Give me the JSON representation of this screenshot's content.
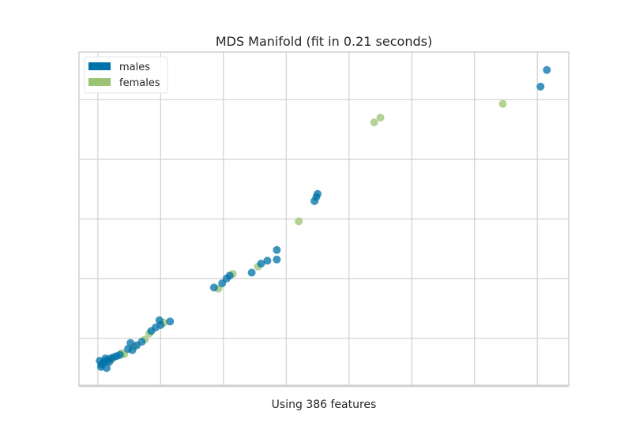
{
  "chart_data": {
    "type": "scatter",
    "title": "MDS Manifold (fit in 0.21 seconds)",
    "xlabel": "Using 386 features",
    "ylabel": "",
    "xlim": [
      -0.3,
      7.5
    ],
    "ylim": [
      -0.3,
      5.3
    ],
    "grid": true,
    "x_gridlines": [
      0,
      1,
      2,
      3,
      4,
      5,
      6,
      7
    ],
    "y_gridlines": [
      0.5,
      1.5,
      2.5,
      3.5,
      4.5
    ],
    "legend_position": "top-left",
    "series": [
      {
        "name": "males",
        "color": "#0072a8",
        "points": [
          [
            0.03,
            0.12
          ],
          [
            0.06,
            0.06
          ],
          [
            0.1,
            0.1
          ],
          [
            0.05,
            0.02
          ],
          [
            0.15,
            0.13
          ],
          [
            0.14,
            0.0
          ],
          [
            0.2,
            0.16
          ],
          [
            0.25,
            0.18
          ],
          [
            0.3,
            0.2
          ],
          [
            0.18,
            0.1
          ],
          [
            0.12,
            0.16
          ],
          [
            0.35,
            0.22
          ],
          [
            0.48,
            0.32
          ],
          [
            0.52,
            0.42
          ],
          [
            0.55,
            0.3
          ],
          [
            0.62,
            0.38
          ],
          [
            0.7,
            0.44
          ],
          [
            0.85,
            0.62
          ],
          [
            0.92,
            0.68
          ],
          [
            1.0,
            0.72
          ],
          [
            0.98,
            0.8
          ],
          [
            1.15,
            0.78
          ],
          [
            1.85,
            1.35
          ],
          [
            1.98,
            1.42
          ],
          [
            2.05,
            1.5
          ],
          [
            2.1,
            1.55
          ],
          [
            2.45,
            1.6
          ],
          [
            2.6,
            1.75
          ],
          [
            2.7,
            1.8
          ],
          [
            2.85,
            1.82
          ],
          [
            2.85,
            1.98
          ],
          [
            3.45,
            2.8
          ],
          [
            3.48,
            2.87
          ],
          [
            3.5,
            2.92
          ],
          [
            7.05,
            4.72
          ],
          [
            7.15,
            5.0
          ]
        ]
      },
      {
        "name": "females",
        "color": "#9ac471",
        "points": [
          [
            0.08,
            0.08
          ],
          [
            0.22,
            0.14
          ],
          [
            0.38,
            0.25
          ],
          [
            0.42,
            0.23
          ],
          [
            0.58,
            0.36
          ],
          [
            0.75,
            0.48
          ],
          [
            0.82,
            0.58
          ],
          [
            1.05,
            0.76
          ],
          [
            1.92,
            1.33
          ],
          [
            2.15,
            1.58
          ],
          [
            2.55,
            1.7
          ],
          [
            3.2,
            2.46
          ],
          [
            4.4,
            4.12
          ],
          [
            4.5,
            4.2
          ],
          [
            6.45,
            4.43
          ]
        ]
      }
    ]
  }
}
